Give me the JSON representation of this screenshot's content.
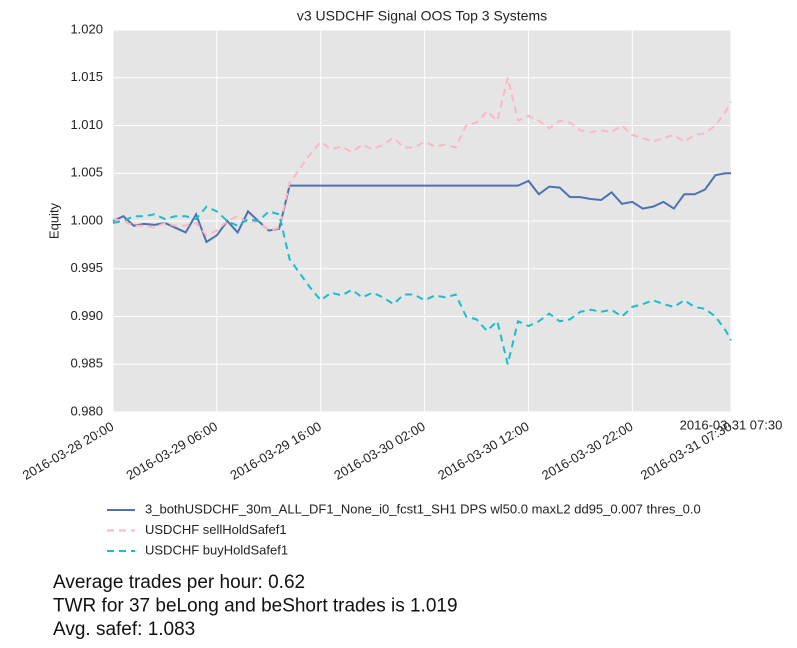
{
  "chart_data": {
    "type": "line",
    "title": "v3 USDCHF Signal OOS Top 3 Systems",
    "ylabel": "Equity",
    "x": [
      "2016-03-28 20:00",
      "2016-03-28 21:00",
      "2016-03-28 22:00",
      "2016-03-28 23:00",
      "2016-03-29 00:00",
      "2016-03-29 01:00",
      "2016-03-29 02:00",
      "2016-03-29 03:00",
      "2016-03-29 04:00",
      "2016-03-29 05:00",
      "2016-03-29 06:00",
      "2016-03-29 07:00",
      "2016-03-29 08:00",
      "2016-03-29 09:00",
      "2016-03-29 10:00",
      "2016-03-29 11:00",
      "2016-03-29 12:00",
      "2016-03-29 13:00",
      "2016-03-29 14:00",
      "2016-03-29 15:00",
      "2016-03-29 16:00",
      "2016-03-29 17:00",
      "2016-03-29 18:00",
      "2016-03-29 19:00",
      "2016-03-29 20:00",
      "2016-03-29 21:00",
      "2016-03-29 22:00",
      "2016-03-29 23:00",
      "2016-03-30 00:00",
      "2016-03-30 01:00",
      "2016-03-30 02:00",
      "2016-03-30 03:00",
      "2016-03-30 04:00",
      "2016-03-30 05:00",
      "2016-03-30 06:00",
      "2016-03-30 07:00",
      "2016-03-30 08:00",
      "2016-03-30 09:00",
      "2016-03-30 10:00",
      "2016-03-30 11:00",
      "2016-03-30 12:00",
      "2016-03-30 13:00",
      "2016-03-30 14:00",
      "2016-03-30 15:00",
      "2016-03-30 16:00",
      "2016-03-30 17:00",
      "2016-03-30 18:00",
      "2016-03-30 19:00",
      "2016-03-30 20:00",
      "2016-03-30 21:00",
      "2016-03-30 22:00",
      "2016-03-30 23:00",
      "2016-03-31 00:00",
      "2016-03-31 01:00",
      "2016-03-31 02:00",
      "2016-03-31 03:00",
      "2016-03-31 04:00",
      "2016-03-31 05:00",
      "2016-03-31 06:00",
      "2016-03-31 07:00",
      "2016-03-31 07:30"
    ],
    "series": [
      {
        "name": "3_bothUSDCHF_30m_ALL_DF1_None_i0_fcst1_SH1 DPS wl50.0 maxL2 dd95_0.007 thres_0.0",
        "color": "#4c72b0",
        "dash": false,
        "values": [
          1.0,
          1.0005,
          0.9995,
          0.9997,
          0.9996,
          0.9998,
          0.9993,
          0.9988,
          1.0007,
          0.9978,
          0.9985,
          1.0,
          0.9988,
          1.001,
          1.0,
          0.999,
          0.9992,
          1.0037,
          1.0037,
          1.0037,
          1.0037,
          1.0037,
          1.0037,
          1.0037,
          1.0037,
          1.0037,
          1.0037,
          1.0037,
          1.0037,
          1.0037,
          1.0037,
          1.0037,
          1.0037,
          1.0037,
          1.0037,
          1.0037,
          1.0037,
          1.0037,
          1.0037,
          1.0037,
          1.0042,
          1.0028,
          1.0036,
          1.0035,
          1.0025,
          1.0025,
          1.0023,
          1.0022,
          1.003,
          1.0018,
          1.002,
          1.0013,
          1.0015,
          1.002,
          1.0013,
          1.0028,
          1.0028,
          1.0033,
          1.0048,
          1.005,
          1.005
        ]
      },
      {
        "name": "USDCHF sellHoldSafef1",
        "color": "#ffb6c1",
        "dash": true,
        "values": [
          1.0002,
          1.0,
          0.9995,
          0.9995,
          0.9993,
          0.9998,
          0.9995,
          0.9995,
          0.9998,
          0.9985,
          0.999,
          1.0,
          1.0005,
          0.9998,
          1.0,
          0.999,
          0.9993,
          1.004,
          1.0055,
          1.007,
          1.0083,
          1.0075,
          1.0078,
          1.0072,
          1.008,
          1.0075,
          1.008,
          1.0087,
          1.0077,
          1.0077,
          1.0083,
          1.0078,
          1.008,
          1.0077,
          1.01,
          1.0103,
          1.0115,
          1.0105,
          1.015,
          1.0105,
          1.011,
          1.0105,
          1.0097,
          1.0105,
          1.0103,
          1.0095,
          1.0093,
          1.0095,
          1.0093,
          1.01,
          1.009,
          1.0087,
          1.0083,
          1.0087,
          1.009,
          1.0083,
          1.009,
          1.0092,
          1.01,
          1.0115,
          1.0125
        ]
      },
      {
        "name": "USDCHF buyHoldSafef1",
        "color": "#17becf",
        "dash": true,
        "values": [
          0.9998,
          1.0,
          1.0005,
          1.0005,
          1.0007,
          1.0002,
          1.0005,
          1.0005,
          1.0002,
          1.0015,
          1.001,
          1.0,
          0.9995,
          1.0002,
          1.0,
          1.001,
          1.0007,
          0.996,
          0.9945,
          0.993,
          0.9917,
          0.9925,
          0.9922,
          0.9928,
          0.992,
          0.9925,
          0.992,
          0.9913,
          0.9923,
          0.9923,
          0.9917,
          0.9922,
          0.992,
          0.9923,
          0.99,
          0.9897,
          0.9885,
          0.9895,
          0.985,
          0.9895,
          0.989,
          0.9895,
          0.9903,
          0.9895,
          0.9897,
          0.9905,
          0.9907,
          0.9905,
          0.9907,
          0.99,
          0.991,
          0.9913,
          0.9917,
          0.9913,
          0.991,
          0.9917,
          0.991,
          0.9908,
          0.99,
          0.9885,
          0.9875
        ]
      }
    ],
    "xlim": [
      "2016-03-28 20:00",
      "2016-03-31 07:30"
    ],
    "xticks": [
      "2016-03-28 20:00",
      "2016-03-29 06:00",
      "2016-03-29 16:00",
      "2016-03-30 02:00",
      "2016-03-30 12:00",
      "2016-03-30 22:00",
      "2016-03-31 07:30"
    ],
    "ylim": [
      0.98,
      1.02
    ],
    "yticks": [
      {
        "value": 0.98,
        "label": "0.980"
      },
      {
        "value": 0.985,
        "label": "0.985"
      },
      {
        "value": 0.99,
        "label": "0.990"
      },
      {
        "value": 0.995,
        "label": "0.995"
      },
      {
        "value": 1,
        "label": "1.000"
      },
      {
        "value": 1.005,
        "label": "1.005"
      },
      {
        "value": 1.01,
        "label": "1.010"
      },
      {
        "value": 1.015,
        "label": "1.015"
      },
      {
        "value": 1.02,
        "label": "1.020"
      }
    ],
    "grid": true,
    "annotations": [
      "2016-03-31 07:30"
    ],
    "notes": [
      "Average trades per hour: 0.62",
      "TWR for 37 beLong and beShort trades is 1.019",
      "Avg. safef: 1.083"
    ]
  }
}
